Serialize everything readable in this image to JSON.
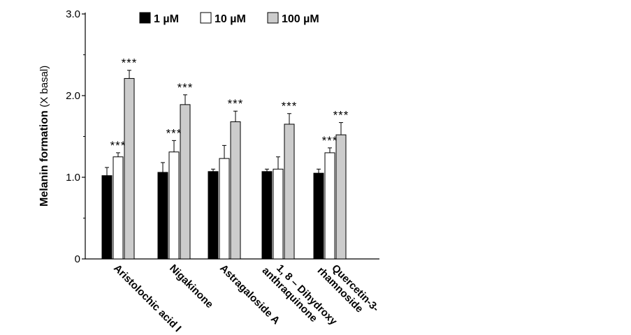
{
  "chart_data": {
    "type": "bar",
    "title": "",
    "xlabel": "",
    "ylabel": "Melanin formation",
    "ylabel_unit": "(X basal)",
    "ylim": [
      0,
      3.0
    ],
    "yticks": [
      {
        "value": 0,
        "label": "0"
      },
      {
        "value": 1.0,
        "label": "1.0"
      },
      {
        "value": 2.0,
        "label": "2.0"
      },
      {
        "value": 3.0,
        "label": "3.0"
      }
    ],
    "categories": [
      [
        "Aristolochic acid I"
      ],
      [
        "Nigakinone"
      ],
      [
        "Astragaloside A"
      ],
      [
        "1, 8 – Dihydroxy",
        "anthraquinone"
      ],
      [
        "Quercetin-3-",
        "rhamnoside"
      ]
    ],
    "legend_position": "top",
    "significance_label": "***",
    "series": [
      {
        "name": "1 µM",
        "color": "#000000",
        "values": [
          1.02,
          1.06,
          1.07,
          1.07,
          1.05
        ],
        "errors": [
          0.1,
          0.12,
          0.03,
          0.03,
          0.05
        ],
        "significant": [
          false,
          false,
          false,
          false,
          false
        ]
      },
      {
        "name": "10 µM",
        "color": "#ffffff",
        "values": [
          1.25,
          1.31,
          1.23,
          1.1,
          1.3
        ],
        "errors": [
          0.05,
          0.14,
          0.16,
          0.15,
          0.06
        ],
        "significant": [
          true,
          true,
          false,
          false,
          true
        ]
      },
      {
        "name": "100 µM",
        "color": "#cccccc",
        "values": [
          2.21,
          1.89,
          1.68,
          1.65,
          1.52
        ],
        "errors": [
          0.1,
          0.12,
          0.13,
          0.13,
          0.15
        ],
        "significant": [
          true,
          true,
          true,
          true,
          true
        ]
      }
    ]
  }
}
